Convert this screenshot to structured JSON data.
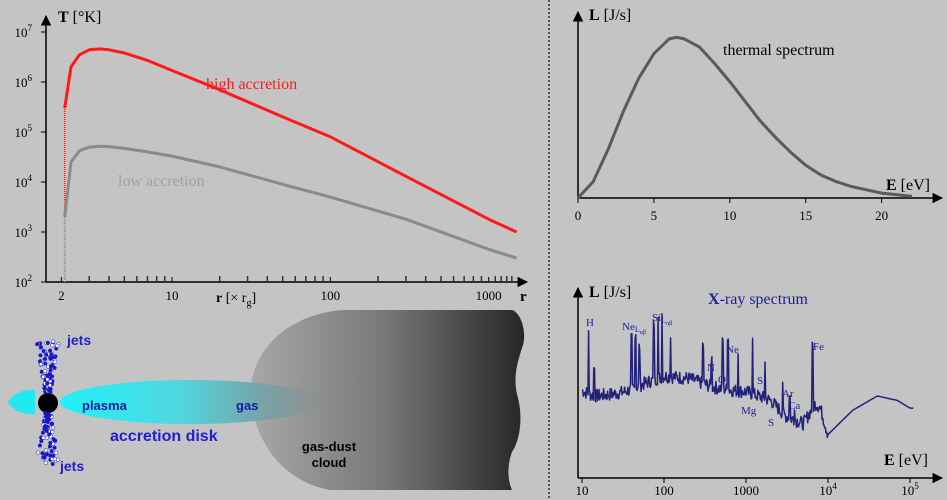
{
  "colors": {
    "background": "#c4c4c4",
    "high_accretion": "#ff1a1a",
    "low_accretion": "#8a8a8a",
    "thermal_curve": "#5a5a5a",
    "xray_curve": "#22227a",
    "xray_labels": "#1c1c9c",
    "disk_cyan": "#22e8f0",
    "jets_blue": "#2020d0",
    "divider": "#555555"
  },
  "temperature_chart": {
    "y_axis_symbol": "T",
    "y_axis_unit": "[°K]",
    "x_axis_symbol": "r",
    "x_axis_unit": "[× r",
    "x_axis_unit_sub": "g",
    "x_axis_unit_close": "]",
    "x_axis_end_label": "r",
    "y_ticks": [
      {
        "base": "10",
        "exp": "2"
      },
      {
        "base": "10",
        "exp": "3"
      },
      {
        "base": "10",
        "exp": "4"
      },
      {
        "base": "10",
        "exp": "5"
      },
      {
        "base": "10",
        "exp": "6"
      },
      {
        "base": "10",
        "exp": "7"
      }
    ],
    "x_ticks": [
      "2",
      "10",
      "100",
      "1000"
    ],
    "high_label": "high accretion",
    "low_label": "low accretion"
  },
  "thermal_chart": {
    "y_axis_symbol": "L",
    "y_axis_unit": "[J/s]",
    "x_axis_symbol": "E",
    "x_axis_unit": "[eV]",
    "title": "thermal spectrum",
    "x_ticks": [
      "0",
      "5",
      "10",
      "15",
      "20"
    ]
  },
  "xray_chart": {
    "y_axis_symbol": "L",
    "y_axis_unit": "[J/s]",
    "x_axis_symbol": "E",
    "x_axis_unit": "[eV]",
    "title_bold": "X",
    "title_rest": "-ray spectrum",
    "x_ticks": [
      {
        "base": "10",
        "exp": ""
      },
      {
        "base": "100",
        "exp": ""
      },
      {
        "base": "1000",
        "exp": ""
      },
      {
        "base": "10",
        "exp": "4"
      },
      {
        "base": "10",
        "exp": "5"
      }
    ],
    "lines": [
      {
        "label": "H"
      },
      {
        "label": "Ne",
        "sub": "L",
        "subsub": "αβ"
      },
      {
        "label": "Si",
        "sub": "L",
        "subsub": "αβ"
      },
      {
        "label": "N"
      },
      {
        "label": "O"
      },
      {
        "label": "Ne"
      },
      {
        "label": "Si"
      },
      {
        "label": "Mg"
      },
      {
        "label": "Ar"
      },
      {
        "label": "Ca"
      },
      {
        "label": "S"
      },
      {
        "label": "Fe"
      }
    ]
  },
  "chart_data": [
    {
      "type": "line",
      "title": "",
      "xlabel": "r [× rg]",
      "ylabel": "T [°K]",
      "x_scale": "log",
      "y_scale": "log",
      "xlim": [
        1.6,
        1600
      ],
      "ylim": [
        100,
        10000000
      ],
      "series": [
        {
          "name": "high accretion",
          "x": [
            2.1,
            2.3,
            2.6,
            3,
            3.5,
            4,
            5,
            7,
            10,
            20,
            50,
            100,
            300,
            1000,
            1500
          ],
          "y": [
            300000,
            2000000,
            3500000,
            4400000,
            4600000,
            4400000,
            3800000,
            2700000,
            1700000,
            700000,
            200000,
            80000,
            13000,
            1800,
            1000
          ]
        },
        {
          "name": "low accretion",
          "x": [
            2.1,
            2.3,
            2.6,
            3,
            3.5,
            4,
            5,
            7,
            10,
            20,
            50,
            100,
            300,
            1000,
            1500
          ],
          "y": [
            2000,
            25000,
            42000,
            50000,
            52000,
            51000,
            47000,
            40000,
            33000,
            20000,
            9000,
            5000,
            1800,
            450,
            300
          ]
        }
      ]
    },
    {
      "type": "line",
      "title": "thermal spectrum",
      "xlabel": "E [eV]",
      "ylabel": "L [J/s]",
      "xlim": [
        0,
        22
      ],
      "ylim": [
        0,
        1
      ],
      "series": [
        {
          "name": "",
          "x": [
            0,
            1,
            2,
            3,
            4,
            5,
            6,
            6.5,
            7,
            8,
            9,
            10,
            11,
            12,
            13,
            14,
            15,
            16,
            17,
            18,
            19,
            20,
            21,
            22
          ],
          "y": [
            0,
            0.1,
            0.3,
            0.53,
            0.73,
            0.88,
            0.97,
            0.98,
            0.97,
            0.92,
            0.82,
            0.71,
            0.59,
            0.47,
            0.37,
            0.28,
            0.2,
            0.14,
            0.1,
            0.07,
            0.05,
            0.03,
            0.02,
            0.01
          ]
        }
      ]
    },
    {
      "type": "line",
      "title": "X-ray spectrum",
      "xlabel": "E [eV]",
      "ylabel": "L [J/s]",
      "x_scale": "log",
      "xlim": [
        10,
        150000
      ],
      "ylim": [
        0,
        1
      ],
      "series": [
        {
          "name": "",
          "x": [
            10,
            12,
            14,
            20,
            30,
            40,
            60,
            100,
            200,
            400,
            700,
            1000,
            2000,
            3000,
            5000,
            7000,
            8000,
            10000,
            20000,
            40000,
            70000,
            100000
          ],
          "y": [
            0.45,
            0.42,
            0.4,
            0.41,
            0.43,
            0.46,
            0.52,
            0.58,
            0.56,
            0.48,
            0.45,
            0.44,
            0.36,
            0.22,
            0.15,
            0.33,
            0.3,
            0.05,
            0.27,
            0.4,
            0.36,
            0.29
          ]
        }
      ]
    }
  ],
  "disk_diagram": {
    "jets_top": "jets",
    "jets_bottom": "jets",
    "plasma": "plasma",
    "gas": "gas",
    "accretion_disk": "accretion disk",
    "cloud_line1": "gas-dust",
    "cloud_line2": "cloud"
  }
}
